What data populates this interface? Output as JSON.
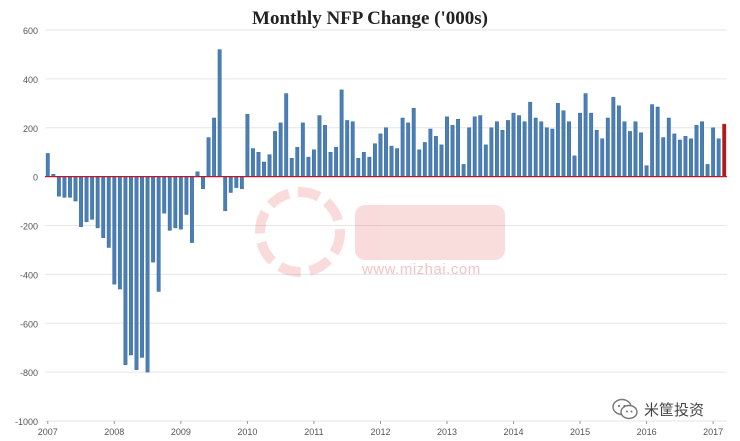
{
  "chart_data": {
    "type": "bar",
    "title": "Monthly NFP Change ('000s)",
    "xlabel": "",
    "ylabel": "",
    "ylim": [
      -1000,
      600
    ],
    "yticks": [
      600,
      400,
      200,
      0,
      -200,
      -400,
      -600,
      -800,
      -1000
    ],
    "ytick_labels": [
      "600",
      "400",
      "200",
      "0",
      "-200",
      "-400",
      "-600",
      "-800",
      "-1000"
    ],
    "xtick_labels": [
      "2007",
      "2008",
      "2009",
      "2010",
      "2011",
      "2012",
      "2013",
      "2014",
      "2015",
      "2016",
      "2017"
    ],
    "x_start": "2007-01",
    "grid": true,
    "colors": {
      "bar": "#4a7fb5",
      "bar_edge": "#2e5f94",
      "last_bar": "#b01818",
      "zero_line": "#c0152a",
      "grid": "#e6e6e6"
    },
    "values": [
      95,
      10,
      -80,
      -85,
      -85,
      -100,
      -205,
      -185,
      -175,
      -210,
      -250,
      -290,
      -440,
      -460,
      -770,
      -730,
      -790,
      -740,
      -800,
      -350,
      -470,
      -150,
      -220,
      -210,
      -215,
      -155,
      -270,
      20,
      -50,
      160,
      240,
      520,
      -140,
      -65,
      -45,
      -50,
      255,
      115,
      100,
      60,
      90,
      185,
      220,
      340,
      75,
      120,
      220,
      80,
      110,
      250,
      210,
      100,
      120,
      355,
      230,
      225,
      75,
      100,
      80,
      135,
      175,
      200,
      125,
      115,
      240,
      220,
      280,
      110,
      140,
      195,
      165,
      130,
      245,
      210,
      235,
      50,
      200,
      245,
      250,
      130,
      200,
      225,
      190,
      230,
      260,
      250,
      225,
      305,
      240,
      225,
      200,
      195,
      300,
      270,
      225,
      85,
      260,
      340,
      260,
      190,
      155,
      240,
      325,
      290,
      225,
      185,
      225,
      180,
      45,
      295,
      285,
      160,
      240,
      175,
      150,
      165,
      155,
      210,
      225,
      50,
      200,
      155,
      215
    ]
  },
  "watermark": {
    "url_text": "www.mizhai.com"
  },
  "badge": {
    "label": "米筐投资"
  }
}
